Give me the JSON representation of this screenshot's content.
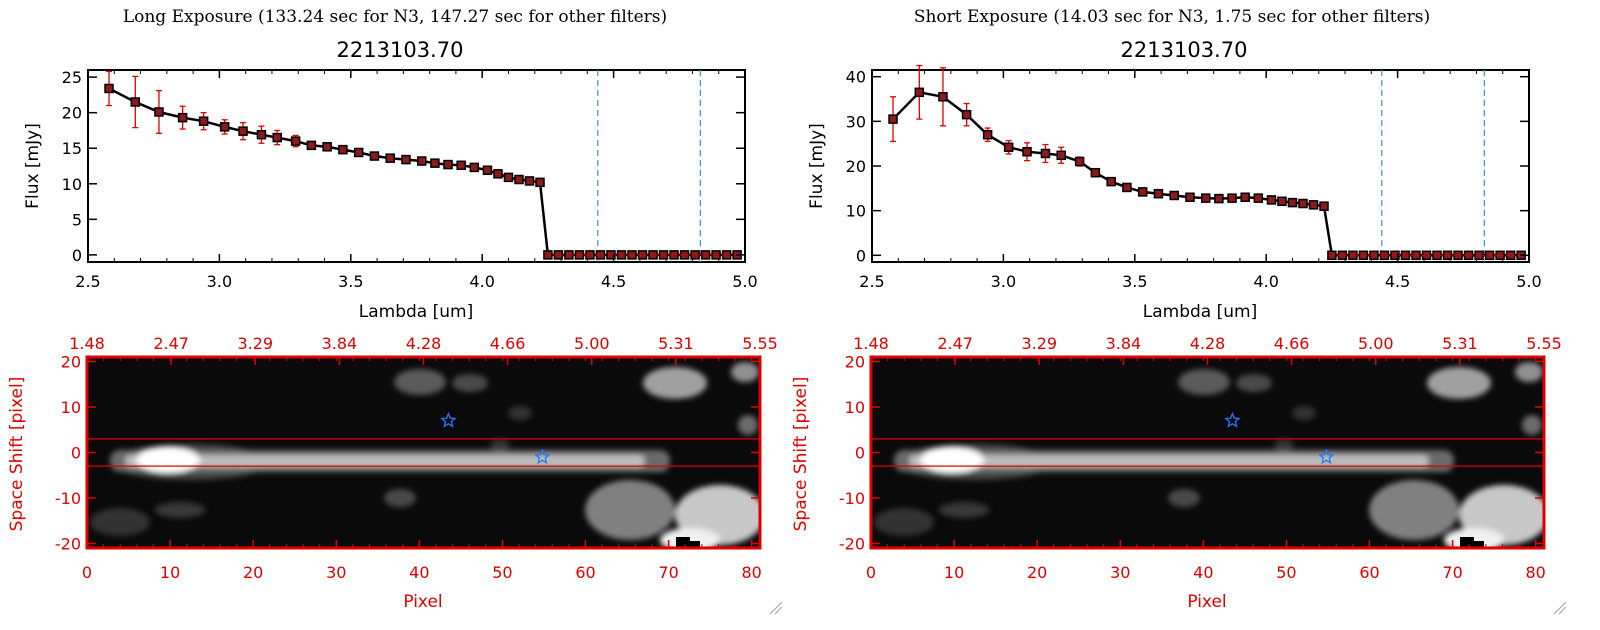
{
  "colors": {
    "axis": "#000000",
    "error_bar": "#e00000",
    "marker": "#000000",
    "marker_fill": "#8b1a1a",
    "vline": "#3a8ee6",
    "image_axis": "#e00000",
    "slit_line": "#e00000",
    "star": "#1f78ff"
  },
  "panels": [
    {
      "header": "Long Exposure (133.24 sec for N3, 147.27 sec for other filters)",
      "chart_data": {
        "type": "line",
        "title": "2213103.70",
        "xlabel": "Lambda [um]",
        "ylabel": "Flux [mJy]",
        "xlim": [
          2.5,
          5.0
        ],
        "ylim": [
          -1,
          26
        ],
        "xticks": [
          "2.5",
          "3.0",
          "3.5",
          "4.0",
          "4.5",
          "5.0"
        ],
        "yticks": [
          "0",
          "5",
          "10",
          "15",
          "20",
          "25"
        ],
        "vlines": [
          4.44,
          4.83
        ],
        "points": [
          {
            "x": 2.58,
            "y": 23.4,
            "err": 2.4
          },
          {
            "x": 2.68,
            "y": 21.5,
            "err": 3.6
          },
          {
            "x": 2.77,
            "y": 20.1,
            "err": 3.0
          },
          {
            "x": 2.86,
            "y": 19.3,
            "err": 1.6
          },
          {
            "x": 2.94,
            "y": 18.8,
            "err": 1.2
          },
          {
            "x": 3.02,
            "y": 18.0,
            "err": 1.0
          },
          {
            "x": 3.09,
            "y": 17.4,
            "err": 1.2
          },
          {
            "x": 3.16,
            "y": 16.9,
            "err": 1.2
          },
          {
            "x": 3.22,
            "y": 16.5,
            "err": 1.0
          },
          {
            "x": 3.29,
            "y": 16.0,
            "err": 0.8
          },
          {
            "x": 3.35,
            "y": 15.4,
            "err": 0.4
          },
          {
            "x": 3.41,
            "y": 15.2,
            "err": 0.3
          },
          {
            "x": 3.47,
            "y": 14.8,
            "err": 0.2
          },
          {
            "x": 3.53,
            "y": 14.4,
            "err": 0.2
          },
          {
            "x": 3.59,
            "y": 13.9,
            "err": 0.2
          },
          {
            "x": 3.65,
            "y": 13.6,
            "err": 0.2
          },
          {
            "x": 3.71,
            "y": 13.4,
            "err": 0.2
          },
          {
            "x": 3.77,
            "y": 13.2,
            "err": 0.2
          },
          {
            "x": 3.82,
            "y": 12.9,
            "err": 0.2
          },
          {
            "x": 3.87,
            "y": 12.7,
            "err": 0.2
          },
          {
            "x": 3.92,
            "y": 12.6,
            "err": 0.2
          },
          {
            "x": 3.97,
            "y": 12.3,
            "err": 0.2
          },
          {
            "x": 4.02,
            "y": 11.9,
            "err": 0.2
          },
          {
            "x": 4.06,
            "y": 11.4,
            "err": 0.2
          },
          {
            "x": 4.1,
            "y": 10.9,
            "err": 0.2
          },
          {
            "x": 4.14,
            "y": 10.6,
            "err": 0.2
          },
          {
            "x": 4.18,
            "y": 10.4,
            "err": 0.2
          },
          {
            "x": 4.22,
            "y": 10.2,
            "err": 0.2
          },
          {
            "x": 4.25,
            "y": 0.0,
            "err": 0.0
          },
          {
            "x": 4.29,
            "y": 0.0,
            "err": 0.0
          },
          {
            "x": 4.33,
            "y": 0.0,
            "err": 0.0
          },
          {
            "x": 4.37,
            "y": 0.0,
            "err": 0.0
          },
          {
            "x": 4.41,
            "y": 0.0,
            "err": 0.0
          },
          {
            "x": 4.45,
            "y": 0.0,
            "err": 0.0
          },
          {
            "x": 4.49,
            "y": 0.0,
            "err": 0.0
          },
          {
            "x": 4.53,
            "y": 0.0,
            "err": 0.0
          },
          {
            "x": 4.57,
            "y": 0.0,
            "err": 0.0
          },
          {
            "x": 4.61,
            "y": 0.0,
            "err": 0.0
          },
          {
            "x": 4.65,
            "y": 0.0,
            "err": 0.0
          },
          {
            "x": 4.69,
            "y": 0.0,
            "err": 0.0
          },
          {
            "x": 4.73,
            "y": 0.0,
            "err": 0.0
          },
          {
            "x": 4.77,
            "y": 0.0,
            "err": 0.0
          },
          {
            "x": 4.81,
            "y": 0.0,
            "err": 0.0
          },
          {
            "x": 4.85,
            "y": 0.0,
            "err": 0.0
          },
          {
            "x": 4.89,
            "y": 0.0,
            "err": 0.0
          },
          {
            "x": 4.93,
            "y": 0.0,
            "err": 0.0
          },
          {
            "x": 4.97,
            "y": 0.0,
            "err": 0.0
          }
        ]
      },
      "image_data": {
        "type": "heatmap",
        "xlabel": "Pixel",
        "ylabel": "Space Shift [pixel]",
        "xlim": [
          0,
          81
        ],
        "ylim": [
          -21,
          21
        ],
        "xticks": [
          "0",
          "10",
          "20",
          "30",
          "40",
          "50",
          "60",
          "70",
          "80"
        ],
        "yticks": [
          "-20",
          "-10",
          "0",
          "10",
          "20"
        ],
        "top_ticks": [
          "1.48",
          "2.47",
          "3.29",
          "3.84",
          "4.28",
          "4.66",
          "5.00",
          "5.31",
          "5.55"
        ],
        "slit_lines": [
          -3,
          3
        ],
        "stars": [
          {
            "x": 43.5,
            "y": 7
          },
          {
            "x": 54.8,
            "y": -1
          }
        ]
      }
    },
    {
      "header": "Short Exposure (14.03 sec for N3, 1.75 sec for other filters)",
      "chart_data": {
        "type": "line",
        "title": "2213103.70",
        "xlabel": "Lambda [um]",
        "ylabel": "Flux [mJy]",
        "xlim": [
          2.5,
          5.0
        ],
        "ylim": [
          -1.5,
          41.5
        ],
        "xticks": [
          "2.5",
          "3.0",
          "3.5",
          "4.0",
          "4.5",
          "5.0"
        ],
        "yticks": [
          "0",
          "10",
          "20",
          "30",
          "40"
        ],
        "vlines": [
          4.44,
          4.83
        ],
        "points": [
          {
            "x": 2.58,
            "y": 30.5,
            "err": 5.0
          },
          {
            "x": 2.68,
            "y": 36.5,
            "err": 6.0
          },
          {
            "x": 2.77,
            "y": 35.5,
            "err": 6.5
          },
          {
            "x": 2.86,
            "y": 31.5,
            "err": 2.5
          },
          {
            "x": 2.94,
            "y": 27.0,
            "err": 1.5
          },
          {
            "x": 3.02,
            "y": 24.2,
            "err": 1.5
          },
          {
            "x": 3.09,
            "y": 23.2,
            "err": 2.0
          },
          {
            "x": 3.16,
            "y": 22.8,
            "err": 2.0
          },
          {
            "x": 3.22,
            "y": 22.4,
            "err": 1.8
          },
          {
            "x": 3.29,
            "y": 21.0,
            "err": 1.0
          },
          {
            "x": 3.35,
            "y": 18.5,
            "err": 0.5
          },
          {
            "x": 3.41,
            "y": 16.5,
            "err": 0.4
          },
          {
            "x": 3.47,
            "y": 15.2,
            "err": 0.3
          },
          {
            "x": 3.53,
            "y": 14.2,
            "err": 0.3
          },
          {
            "x": 3.59,
            "y": 13.8,
            "err": 0.3
          },
          {
            "x": 3.65,
            "y": 13.4,
            "err": 0.3
          },
          {
            "x": 3.71,
            "y": 13.0,
            "err": 0.3
          },
          {
            "x": 3.77,
            "y": 12.8,
            "err": 0.3
          },
          {
            "x": 3.82,
            "y": 12.7,
            "err": 0.3
          },
          {
            "x": 3.87,
            "y": 12.8,
            "err": 0.3
          },
          {
            "x": 3.92,
            "y": 13.0,
            "err": 0.3
          },
          {
            "x": 3.97,
            "y": 12.8,
            "err": 0.3
          },
          {
            "x": 4.02,
            "y": 12.4,
            "err": 0.3
          },
          {
            "x": 4.06,
            "y": 12.1,
            "err": 0.3
          },
          {
            "x": 4.1,
            "y": 11.8,
            "err": 0.3
          },
          {
            "x": 4.14,
            "y": 11.6,
            "err": 0.3
          },
          {
            "x": 4.18,
            "y": 11.3,
            "err": 0.3
          },
          {
            "x": 4.22,
            "y": 11.0,
            "err": 0.3
          },
          {
            "x": 4.25,
            "y": 0.0,
            "err": 0.0
          },
          {
            "x": 4.29,
            "y": 0.0,
            "err": 0.0
          },
          {
            "x": 4.33,
            "y": 0.0,
            "err": 0.0
          },
          {
            "x": 4.37,
            "y": 0.0,
            "err": 0.0
          },
          {
            "x": 4.41,
            "y": 0.0,
            "err": 0.0
          },
          {
            "x": 4.45,
            "y": 0.0,
            "err": 0.0
          },
          {
            "x": 4.49,
            "y": 0.0,
            "err": 0.0
          },
          {
            "x": 4.53,
            "y": 0.0,
            "err": 0.0
          },
          {
            "x": 4.57,
            "y": 0.0,
            "err": 0.0
          },
          {
            "x": 4.61,
            "y": 0.0,
            "err": 0.0
          },
          {
            "x": 4.65,
            "y": 0.0,
            "err": 0.0
          },
          {
            "x": 4.69,
            "y": 0.0,
            "err": 0.0
          },
          {
            "x": 4.73,
            "y": 0.0,
            "err": 0.0
          },
          {
            "x": 4.77,
            "y": 0.0,
            "err": 0.0
          },
          {
            "x": 4.81,
            "y": 0.0,
            "err": 0.0
          },
          {
            "x": 4.85,
            "y": 0.0,
            "err": 0.0
          },
          {
            "x": 4.89,
            "y": 0.0,
            "err": 0.0
          },
          {
            "x": 4.93,
            "y": 0.0,
            "err": 0.0
          },
          {
            "x": 4.97,
            "y": 0.0,
            "err": 0.0
          }
        ]
      },
      "image_data": {
        "type": "heatmap",
        "xlabel": "Pixel",
        "ylabel": "Space Shift [pixel]",
        "xlim": [
          0,
          81
        ],
        "ylim": [
          -21,
          21
        ],
        "xticks": [
          "0",
          "10",
          "20",
          "30",
          "40",
          "50",
          "60",
          "70",
          "80"
        ],
        "yticks": [
          "-20",
          "-10",
          "0",
          "10",
          "20"
        ],
        "top_ticks": [
          "1.48",
          "2.47",
          "3.29",
          "3.84",
          "4.28",
          "4.66",
          "5.00",
          "5.31",
          "5.55"
        ],
        "slit_lines": [
          -3,
          3
        ],
        "stars": [
          {
            "x": 43.5,
            "y": 7
          },
          {
            "x": 54.8,
            "y": -1
          }
        ]
      }
    }
  ]
}
